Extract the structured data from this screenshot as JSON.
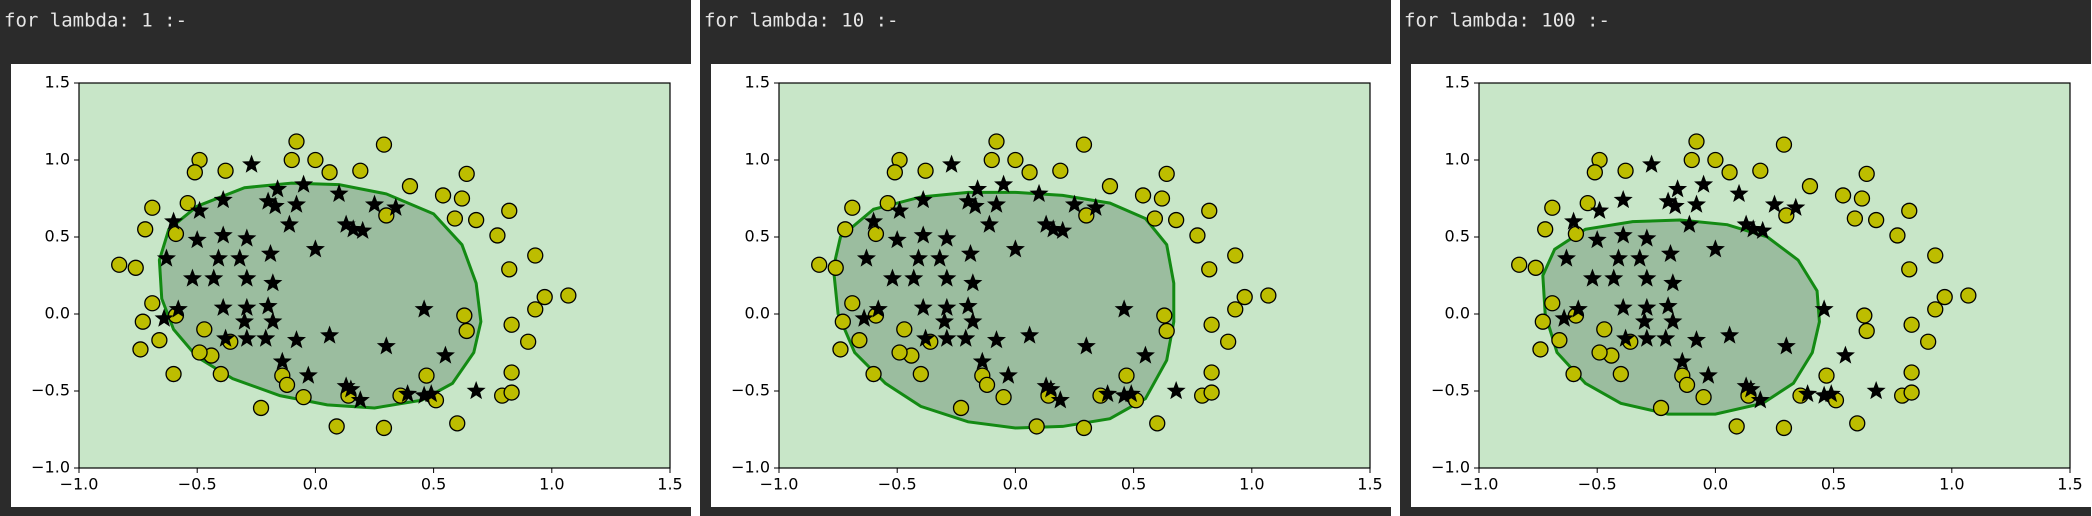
{
  "chart_data": [
    {
      "type": "scatter",
      "title": "for lambda: 1 :-",
      "xlim": [
        -1,
        1.5
      ],
      "ylim": [
        -1,
        1.5
      ],
      "xticks": [
        {
          "value": -1,
          "label": "−1.0"
        },
        {
          "value": -0.5,
          "label": "−0.5"
        },
        {
          "value": 0,
          "label": "0.0"
        },
        0.5,
        {
          "value": 1,
          "label": "1.0"
        },
        1.5
      ],
      "yticks": [
        {
          "value": -1,
          "label": "−1.0"
        },
        {
          "value": -0.5,
          "label": "−0.5"
        },
        {
          "value": 0,
          "label": "0.0"
        },
        0.5,
        {
          "value": 1,
          "label": "1.0"
        },
        1.5
      ],
      "background": "#c8e6c8",
      "boundary": {
        "color": "#138a13",
        "fill": "#9bbd9f",
        "x": [
          -0.66,
          -0.62,
          -0.5,
          -0.3,
          -0.1,
          0.1,
          0.3,
          0.5,
          0.62,
          0.68,
          0.7,
          0.67,
          0.58,
          0.45,
          0.25,
          0.05,
          -0.15,
          -0.35,
          -0.5,
          -0.6,
          -0.65,
          -0.66
        ],
        "y": [
          0.35,
          0.55,
          0.7,
          0.82,
          0.85,
          0.84,
          0.78,
          0.65,
          0.45,
          0.2,
          -0.05,
          -0.25,
          -0.45,
          -0.56,
          -0.61,
          -0.59,
          -0.53,
          -0.42,
          -0.28,
          -0.1,
          0.1,
          0.35
        ]
      },
      "series": [
        {
          "marker": "circle",
          "color": "#bdbd00",
          "x": [
            -0.49,
            -0.51,
            -0.38,
            -0.08,
            -0.1,
            0.0,
            0.06,
            0.19,
            0.29,
            -0.69,
            -0.54,
            -0.72,
            -0.59,
            -0.83,
            -0.76,
            0.4,
            0.54,
            0.64,
            0.62,
            0.59,
            0.68,
            0.82,
            0.77,
            0.3,
            0.93,
            0.82,
            0.97,
            1.07,
            0.93,
            -0.69,
            -0.59,
            -0.73,
            -0.66,
            -0.74,
            -0.47,
            -0.44,
            -0.36,
            -0.49,
            -0.6,
            -0.4,
            0.63,
            0.64,
            0.83,
            0.9,
            0.83,
            0.79,
            0.83,
            0.47,
            0.51,
            -0.14,
            -0.12,
            -0.05,
            0.14,
            -0.23,
            0.09,
            0.29,
            0.6,
            0.36
          ],
          "y": [
            1.0,
            0.92,
            0.93,
            1.12,
            1.0,
            1.0,
            0.92,
            0.93,
            1.1,
            0.69,
            0.72,
            0.55,
            0.52,
            0.32,
            0.3,
            0.83,
            0.77,
            0.91,
            0.75,
            0.62,
            0.61,
            0.67,
            0.51,
            0.64,
            0.38,
            0.29,
            0.11,
            0.12,
            0.03,
            0.07,
            -0.01,
            -0.05,
            -0.17,
            -0.23,
            -0.1,
            -0.27,
            -0.18,
            -0.25,
            -0.39,
            -0.39,
            -0.01,
            -0.11,
            -0.07,
            -0.18,
            -0.38,
            -0.53,
            -0.51,
            -0.4,
            -0.56,
            -0.4,
            -0.46,
            -0.54,
            -0.53,
            -0.61,
            -0.73,
            -0.74,
            -0.71,
            -0.53
          ]
        },
        {
          "marker": "star",
          "color": "#000000",
          "x": [
            -0.27,
            -0.39,
            -0.49,
            -0.6,
            -0.2,
            -0.17,
            -0.08,
            -0.05,
            -0.16,
            0.1,
            0.25,
            0.34,
            -0.5,
            -0.39,
            -0.29,
            -0.11,
            0.13,
            0.16,
            0.2,
            0.0,
            -0.63,
            -0.41,
            -0.32,
            -0.19,
            -0.52,
            -0.43,
            -0.29,
            -0.18,
            -0.39,
            -0.29,
            -0.2,
            -0.58,
            -0.3,
            -0.18,
            -0.38,
            -0.29,
            -0.21,
            -0.08,
            0.06,
            0.3,
            -0.14,
            -0.03,
            0.46,
            0.55,
            0.68,
            0.13,
            0.15,
            0.39,
            0.49,
            0.46,
            0.19,
            -0.64
          ],
          "y": [
            0.97,
            0.74,
            0.67,
            0.6,
            0.73,
            0.7,
            0.71,
            0.84,
            0.81,
            0.78,
            0.71,
            0.69,
            0.48,
            0.51,
            0.49,
            0.58,
            0.58,
            0.55,
            0.54,
            0.42,
            0.36,
            0.36,
            0.36,
            0.39,
            0.23,
            0.23,
            0.23,
            0.2,
            0.04,
            0.04,
            0.05,
            0.03,
            -0.05,
            -0.05,
            -0.16,
            -0.16,
            -0.16,
            -0.17,
            -0.14,
            -0.21,
            -0.31,
            -0.4,
            0.03,
            -0.27,
            -0.5,
            -0.47,
            -0.49,
            -0.52,
            -0.52,
            -0.53,
            -0.56,
            -0.03
          ]
        }
      ]
    },
    {
      "type": "scatter",
      "title": "for lambda: 10 :-",
      "xlim": [
        -1,
        1.5
      ],
      "ylim": [
        -1,
        1.5
      ],
      "xticks": [
        {
          "value": -1,
          "label": "−1.0"
        },
        {
          "value": -0.5,
          "label": "−0.5"
        },
        {
          "value": 0,
          "label": "0.0"
        },
        0.5,
        {
          "value": 1,
          "label": "1.0"
        },
        1.5
      ],
      "yticks": [
        {
          "value": -1,
          "label": "−1.0"
        },
        {
          "value": -0.5,
          "label": "−0.5"
        },
        {
          "value": 0,
          "label": "0.0"
        },
        0.5,
        {
          "value": 1,
          "label": "1.0"
        },
        1.5
      ],
      "background": "#c8e6c8",
      "boundary": {
        "color": "#138a13",
        "fill": "#9bbd9f",
        "x": [
          -0.77,
          -0.74,
          -0.6,
          -0.4,
          -0.2,
          0.0,
          0.2,
          0.4,
          0.55,
          0.64,
          0.67,
          0.67,
          0.64,
          0.55,
          0.4,
          0.2,
          0.0,
          -0.2,
          -0.4,
          -0.55,
          -0.68,
          -0.75,
          -0.77
        ],
        "y": [
          0.3,
          0.5,
          0.68,
          0.76,
          0.79,
          0.79,
          0.77,
          0.72,
          0.62,
          0.45,
          0.2,
          -0.05,
          -0.3,
          -0.55,
          -0.68,
          -0.73,
          -0.74,
          -0.7,
          -0.6,
          -0.45,
          -0.25,
          0.0,
          0.3
        ]
      },
      "series": [
        {
          "marker": "circle",
          "color": "#bdbd00",
          "x": [
            -0.49,
            -0.51,
            -0.38,
            -0.08,
            -0.1,
            0.0,
            0.06,
            0.19,
            0.29,
            -0.69,
            -0.54,
            -0.72,
            -0.59,
            -0.83,
            -0.76,
            0.4,
            0.54,
            0.64,
            0.62,
            0.59,
            0.68,
            0.82,
            0.77,
            0.3,
            0.93,
            0.82,
            0.97,
            1.07,
            0.93,
            -0.69,
            -0.59,
            -0.73,
            -0.66,
            -0.74,
            -0.47,
            -0.44,
            -0.36,
            -0.49,
            -0.6,
            -0.4,
            0.63,
            0.64,
            0.83,
            0.9,
            0.83,
            0.79,
            0.83,
            0.47,
            0.51,
            -0.14,
            -0.12,
            -0.05,
            0.14,
            -0.23,
            0.09,
            0.29,
            0.6,
            0.36
          ],
          "y": [
            1.0,
            0.92,
            0.93,
            1.12,
            1.0,
            1.0,
            0.92,
            0.93,
            1.1,
            0.69,
            0.72,
            0.55,
            0.52,
            0.32,
            0.3,
            0.83,
            0.77,
            0.91,
            0.75,
            0.62,
            0.61,
            0.67,
            0.51,
            0.64,
            0.38,
            0.29,
            0.11,
            0.12,
            0.03,
            0.07,
            -0.01,
            -0.05,
            -0.17,
            -0.23,
            -0.1,
            -0.27,
            -0.18,
            -0.25,
            -0.39,
            -0.39,
            -0.01,
            -0.11,
            -0.07,
            -0.18,
            -0.38,
            -0.53,
            -0.51,
            -0.4,
            -0.56,
            -0.4,
            -0.46,
            -0.54,
            -0.53,
            -0.61,
            -0.73,
            -0.74,
            -0.71,
            -0.53
          ]
        },
        {
          "marker": "star",
          "color": "#000000",
          "x": [
            -0.27,
            -0.39,
            -0.49,
            -0.6,
            -0.2,
            -0.17,
            -0.08,
            -0.05,
            -0.16,
            0.1,
            0.25,
            0.34,
            -0.5,
            -0.39,
            -0.29,
            -0.11,
            0.13,
            0.16,
            0.2,
            0.0,
            -0.63,
            -0.41,
            -0.32,
            -0.19,
            -0.52,
            -0.43,
            -0.29,
            -0.18,
            -0.39,
            -0.29,
            -0.2,
            -0.58,
            -0.3,
            -0.18,
            -0.38,
            -0.29,
            -0.21,
            -0.08,
            0.06,
            0.3,
            -0.14,
            -0.03,
            0.46,
            0.55,
            0.68,
            0.13,
            0.15,
            0.39,
            0.49,
            0.46,
            0.19,
            -0.64
          ],
          "y": [
            0.97,
            0.74,
            0.67,
            0.6,
            0.73,
            0.7,
            0.71,
            0.84,
            0.81,
            0.78,
            0.71,
            0.69,
            0.48,
            0.51,
            0.49,
            0.58,
            0.58,
            0.55,
            0.54,
            0.42,
            0.36,
            0.36,
            0.36,
            0.39,
            0.23,
            0.23,
            0.23,
            0.2,
            0.04,
            0.04,
            0.05,
            0.03,
            -0.05,
            -0.05,
            -0.16,
            -0.16,
            -0.16,
            -0.17,
            -0.14,
            -0.21,
            -0.31,
            -0.4,
            0.03,
            -0.27,
            -0.5,
            -0.47,
            -0.49,
            -0.52,
            -0.52,
            -0.53,
            -0.56,
            -0.03
          ]
        }
      ]
    },
    {
      "type": "scatter",
      "title": "for lambda: 100 :-",
      "xlim": [
        -1,
        1.5
      ],
      "ylim": [
        -1,
        1.5
      ],
      "xticks": [
        {
          "value": -1,
          "label": "−1.0"
        },
        {
          "value": -0.5,
          "label": "−0.5"
        },
        {
          "value": 0,
          "label": "0.0"
        },
        0.5,
        {
          "value": 1,
          "label": "1.0"
        },
        1.5
      ],
      "yticks": [
        {
          "value": -1,
          "label": "−1.0"
        },
        {
          "value": -0.5,
          "label": "−0.5"
        },
        {
          "value": 0,
          "label": "0.0"
        },
        0.5,
        {
          "value": 1,
          "label": "1.0"
        },
        1.5
      ],
      "background": "#c8e6c8",
      "boundary": {
        "color": "#138a13",
        "fill": "#9bbd9f",
        "x": [
          -0.73,
          -0.68,
          -0.55,
          -0.35,
          -0.15,
          0.05,
          0.22,
          0.35,
          0.43,
          0.44,
          0.41,
          0.33,
          0.2,
          0.0,
          -0.2,
          -0.4,
          -0.55,
          -0.67,
          -0.72,
          -0.73
        ],
        "y": [
          0.25,
          0.42,
          0.55,
          0.6,
          0.61,
          0.58,
          0.5,
          0.35,
          0.15,
          -0.05,
          -0.25,
          -0.45,
          -0.58,
          -0.65,
          -0.65,
          -0.58,
          -0.45,
          -0.25,
          0.0,
          0.25
        ]
      },
      "series": [
        {
          "marker": "circle",
          "color": "#bdbd00",
          "x": [
            -0.49,
            -0.51,
            -0.38,
            -0.08,
            -0.1,
            0.0,
            0.06,
            0.19,
            0.29,
            -0.69,
            -0.54,
            -0.72,
            -0.59,
            -0.83,
            -0.76,
            0.4,
            0.54,
            0.64,
            0.62,
            0.59,
            0.68,
            0.82,
            0.77,
            0.3,
            0.93,
            0.82,
            0.97,
            1.07,
            0.93,
            -0.69,
            -0.59,
            -0.73,
            -0.66,
            -0.74,
            -0.47,
            -0.44,
            -0.36,
            -0.49,
            -0.6,
            -0.4,
            0.63,
            0.64,
            0.83,
            0.9,
            0.83,
            0.79,
            0.83,
            0.47,
            0.51,
            -0.14,
            -0.12,
            -0.05,
            0.14,
            -0.23,
            0.09,
            0.29,
            0.6,
            0.36
          ],
          "y": [
            1.0,
            0.92,
            0.93,
            1.12,
            1.0,
            1.0,
            0.92,
            0.93,
            1.1,
            0.69,
            0.72,
            0.55,
            0.52,
            0.32,
            0.3,
            0.83,
            0.77,
            0.91,
            0.75,
            0.62,
            0.61,
            0.67,
            0.51,
            0.64,
            0.38,
            0.29,
            0.11,
            0.12,
            0.03,
            0.07,
            -0.01,
            -0.05,
            -0.17,
            -0.23,
            -0.1,
            -0.27,
            -0.18,
            -0.25,
            -0.39,
            -0.39,
            -0.01,
            -0.11,
            -0.07,
            -0.18,
            -0.38,
            -0.53,
            -0.51,
            -0.4,
            -0.56,
            -0.4,
            -0.46,
            -0.54,
            -0.53,
            -0.61,
            -0.73,
            -0.74,
            -0.71,
            -0.53
          ]
        },
        {
          "marker": "star",
          "color": "#000000",
          "x": [
            -0.27,
            -0.39,
            -0.49,
            -0.6,
            -0.2,
            -0.17,
            -0.08,
            -0.05,
            -0.16,
            0.1,
            0.25,
            0.34,
            -0.5,
            -0.39,
            -0.29,
            -0.11,
            0.13,
            0.16,
            0.2,
            0.0,
            -0.63,
            -0.41,
            -0.32,
            -0.19,
            -0.52,
            -0.43,
            -0.29,
            -0.18,
            -0.39,
            -0.29,
            -0.2,
            -0.58,
            -0.3,
            -0.18,
            -0.38,
            -0.29,
            -0.21,
            -0.08,
            0.06,
            0.3,
            -0.14,
            -0.03,
            0.46,
            0.55,
            0.68,
            0.13,
            0.15,
            0.39,
            0.49,
            0.46,
            0.19,
            -0.64
          ],
          "y": [
            0.97,
            0.74,
            0.67,
            0.6,
            0.73,
            0.7,
            0.71,
            0.84,
            0.81,
            0.78,
            0.71,
            0.69,
            0.48,
            0.51,
            0.49,
            0.58,
            0.58,
            0.55,
            0.54,
            0.42,
            0.36,
            0.36,
            0.36,
            0.39,
            0.23,
            0.23,
            0.23,
            0.2,
            0.04,
            0.04,
            0.05,
            0.03,
            -0.05,
            -0.05,
            -0.16,
            -0.16,
            -0.16,
            -0.17,
            -0.14,
            -0.21,
            -0.31,
            -0.4,
            0.03,
            -0.27,
            -0.5,
            -0.47,
            -0.49,
            -0.52,
            -0.52,
            -0.53,
            -0.56,
            -0.03
          ]
        }
      ]
    }
  ]
}
